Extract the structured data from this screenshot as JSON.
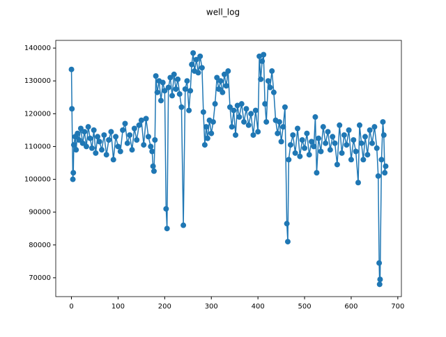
{
  "chart_data": {
    "type": "line",
    "title": "well_log",
    "color": "#1f77b4",
    "markers": true,
    "x": [
      0,
      1,
      3,
      4,
      5,
      8,
      10,
      13,
      16,
      20,
      24,
      28,
      32,
      36,
      40,
      44,
      48,
      52,
      56,
      60,
      65,
      70,
      75,
      80,
      85,
      90,
      95,
      100,
      105,
      110,
      115,
      120,
      125,
      130,
      135,
      140,
      145,
      150,
      155,
      160,
      165,
      170,
      173,
      175,
      177,
      179,
      181,
      184,
      188,
      192,
      196,
      200,
      203,
      205,
      208,
      212,
      216,
      220,
      224,
      228,
      232,
      236,
      240,
      244,
      248,
      252,
      255,
      258,
      261,
      264,
      268,
      272,
      276,
      280,
      283,
      286,
      289,
      292,
      296,
      300,
      304,
      308,
      312,
      316,
      320,
      324,
      328,
      332,
      336,
      340,
      344,
      348,
      352,
      356,
      360,
      365,
      370,
      375,
      380,
      385,
      390,
      395,
      400,
      403,
      406,
      409,
      412,
      415,
      418,
      422,
      426,
      430,
      434,
      438,
      442,
      446,
      450,
      454,
      458,
      462,
      464,
      466,
      470,
      475,
      480,
      485,
      490,
      495,
      500,
      505,
      510,
      515,
      520,
      523,
      526,
      530,
      535,
      540,
      545,
      550,
      555,
      560,
      565,
      570,
      575,
      580,
      585,
      590,
      595,
      600,
      605,
      610,
      615,
      618,
      622,
      626,
      630,
      635,
      640,
      645,
      650,
      655,
      658,
      660,
      661,
      662,
      665,
      668,
      670,
      672,
      674
    ],
    "values": [
      133500,
      121500,
      100000,
      102000,
      110500,
      113000,
      109000,
      114000,
      112000,
      115500,
      111000,
      114500,
      110000,
      116000,
      112500,
      109500,
      115000,
      108000,
      113000,
      111500,
      109000,
      113500,
      107500,
      112000,
      114500,
      106000,
      113000,
      110000,
      108500,
      115000,
      117000,
      111000,
      113500,
      109000,
      115500,
      112000,
      116500,
      118000,
      110500,
      118500,
      113000,
      110000,
      108500,
      104000,
      102500,
      112000,
      131500,
      126500,
      130000,
      124000,
      129500,
      127000,
      91000,
      85000,
      128000,
      131000,
      125500,
      132000,
      127500,
      130500,
      126000,
      122000,
      86000,
      127500,
      130000,
      121000,
      127000,
      135000,
      138500,
      133000,
      136500,
      132500,
      137500,
      134000,
      120500,
      110500,
      116000,
      112500,
      118000,
      114000,
      117500,
      123000,
      131000,
      127500,
      130000,
      126500,
      132000,
      128500,
      133000,
      122000,
      116000,
      121000,
      113500,
      122500,
      119000,
      123000,
      117500,
      121500,
      116500,
      120000,
      113500,
      121000,
      114500,
      137500,
      130500,
      136000,
      138000,
      123000,
      117500,
      130000,
      128000,
      133000,
      126500,
      118000,
      114000,
      117500,
      111500,
      116000,
      122000,
      86500,
      81000,
      106000,
      110500,
      113500,
      108000,
      115500,
      107000,
      112000,
      109500,
      114000,
      107500,
      111500,
      110000,
      119000,
      102000,
      112500,
      108500,
      116000,
      111000,
      114500,
      109000,
      113000,
      111000,
      104500,
      116500,
      108000,
      113500,
      110500,
      115000,
      106000,
      112000,
      108500,
      99000,
      116500,
      111000,
      106000,
      113000,
      107500,
      115000,
      111000,
      116000,
      109500,
      101000,
      74500,
      68000,
      69500,
      106000,
      117500,
      113500,
      102000,
      104000
    ],
    "xlim": [
      -33.7,
      707.7
    ],
    "ylim": [
      64250,
      142350
    ],
    "xticks": [
      0,
      100,
      200,
      300,
      400,
      500,
      600,
      700
    ],
    "yticks": [
      70000,
      80000,
      90000,
      100000,
      110000,
      120000,
      130000,
      140000
    ]
  }
}
